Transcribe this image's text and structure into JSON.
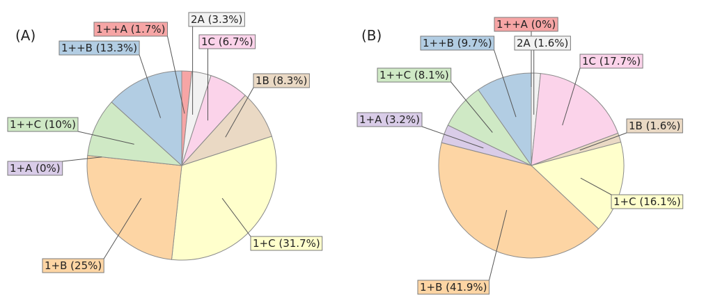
{
  "chart_data": [
    {
      "type": "pie",
      "panel_label": "(A)",
      "slices": [
        {
          "label": "1++A",
          "value": 1.7,
          "text": "1++A (1.7%)",
          "color": "#f6a5a5"
        },
        {
          "label": "2A",
          "value": 3.3,
          "text": "2A (3.3%)",
          "color": "#f2f2f2"
        },
        {
          "label": "1C",
          "value": 6.7,
          "text": "1C (6.7%)",
          "color": "#fbd3ea"
        },
        {
          "label": "1B",
          "value": 8.3,
          "text": "1B (8.3%)",
          "color": "#ead9c4"
        },
        {
          "label": "1+C",
          "value": 31.7,
          "text": "1+C (31.7%)",
          "color": "#ffffcc"
        },
        {
          "label": "1+B",
          "value": 25,
          "text": "1+B (25%)",
          "color": "#fdd5a4"
        },
        {
          "label": "1+A",
          "value": 0,
          "text": "1+A (0%)",
          "color": "#d9cce8"
        },
        {
          "label": "1++C",
          "value": 10,
          "text": "1++C (10%)",
          "color": "#cfe9c5"
        },
        {
          "label": "1++B",
          "value": 13.3,
          "text": "1++B (13.3%)",
          "color": "#b2cde3"
        }
      ]
    },
    {
      "type": "pie",
      "panel_label": "(B)",
      "slices": [
        {
          "label": "1++A",
          "value": 0,
          "text": "1++A (0%)",
          "color": "#f6a5a5"
        },
        {
          "label": "2A",
          "value": 1.6,
          "text": "2A (1.6%)",
          "color": "#f2f2f2"
        },
        {
          "label": "1C",
          "value": 17.7,
          "text": "1C (17.7%)",
          "color": "#fbd3ea"
        },
        {
          "label": "1B",
          "value": 1.6,
          "text": "1B (1.6%)",
          "color": "#ead9c4"
        },
        {
          "label": "1+C",
          "value": 16.1,
          "text": "1+C (16.1%)",
          "color": "#ffffcc"
        },
        {
          "label": "1+B",
          "value": 41.9,
          "text": "1+B (41.9%)",
          "color": "#fdd5a4"
        },
        {
          "label": "1+A",
          "value": 3.2,
          "text": "1+A (3.2%)",
          "color": "#d9cce8"
        },
        {
          "label": "1++C",
          "value": 8.1,
          "text": "1++C (8.1%)",
          "color": "#cfe9c5"
        },
        {
          "label": "1++B",
          "value": 9.7,
          "text": "1++B (9.7%)",
          "color": "#b2cde3"
        }
      ]
    }
  ]
}
